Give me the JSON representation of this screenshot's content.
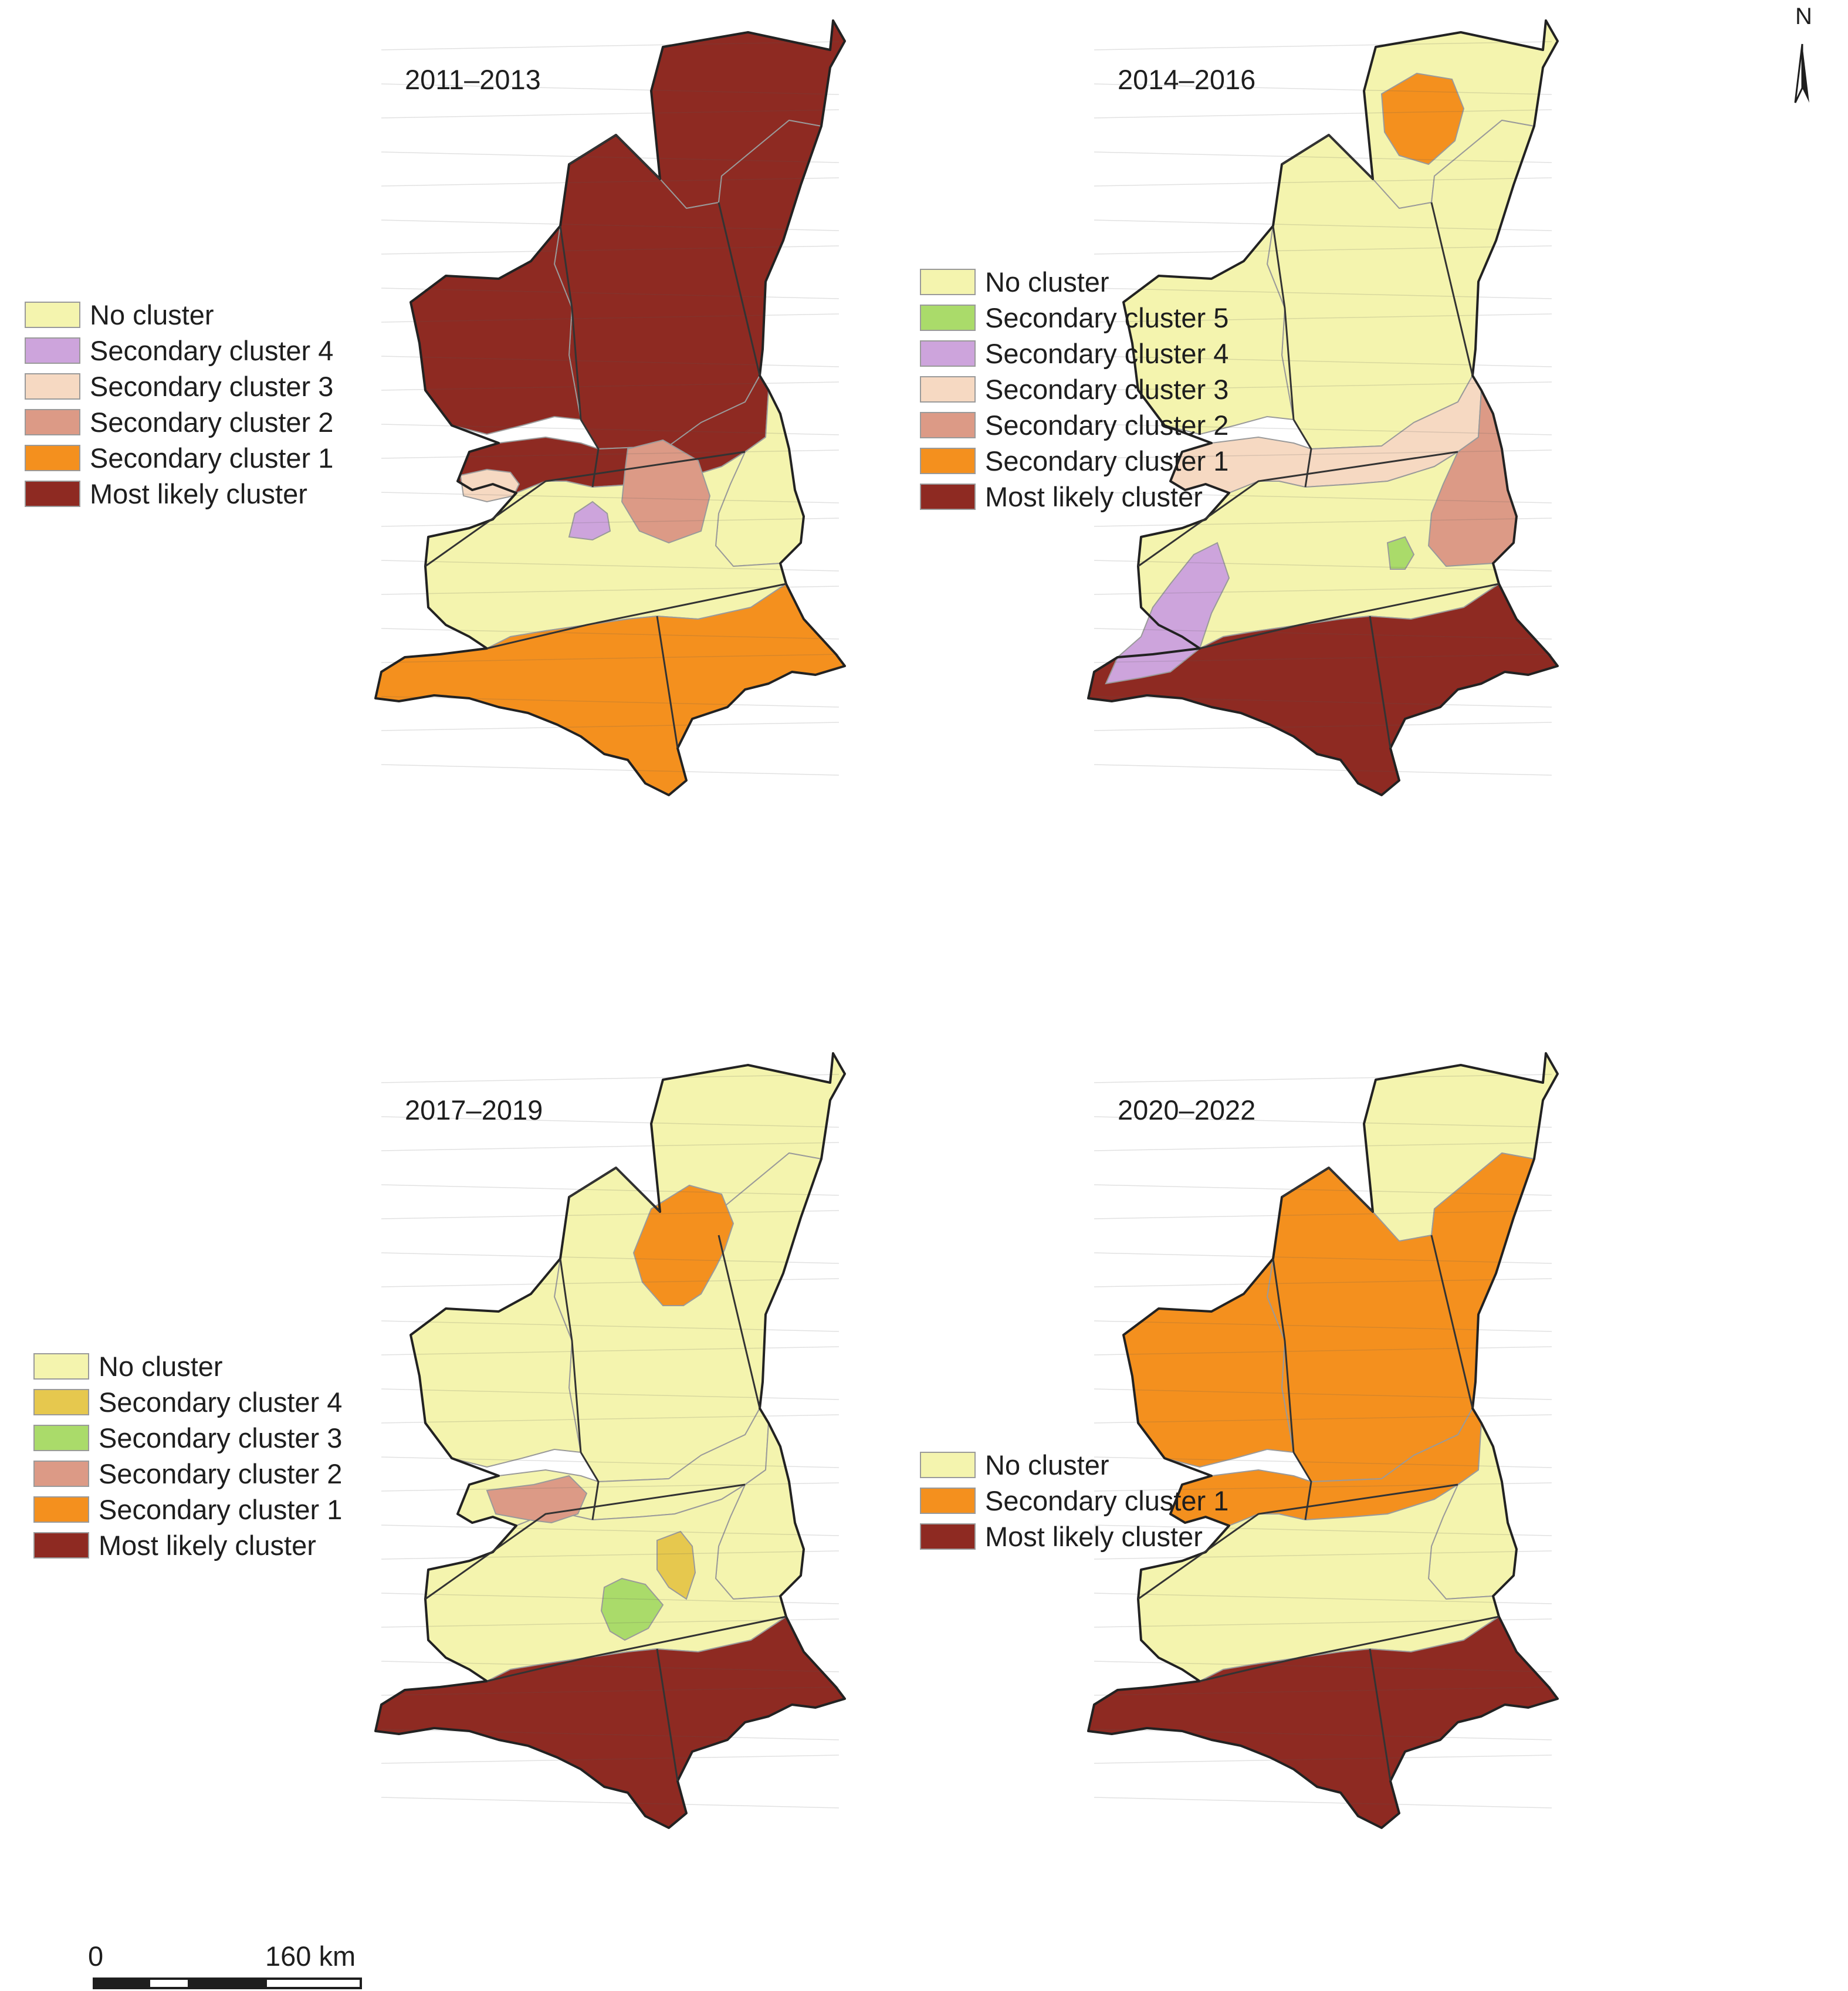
{
  "colors": {
    "no_cluster": "#f4f4ae",
    "most_likely_cluster": "#8e2a22",
    "secondary_cluster_1": "#f4901e",
    "secondary_cluster_2": "#dc9a86",
    "secondary_cluster_3": "#f6d9c2",
    "secondary_cluster_4_purple": "#cda4dc",
    "secondary_cluster_4_gold": "#e6c84e",
    "secondary_cluster_5": "#aadb6a",
    "boundary": "#222222"
  },
  "north_arrow": {
    "label": "N",
    "icon": "north-arrow-icon"
  },
  "scale_bar": {
    "start_label": "0",
    "end_label": "160 km"
  },
  "panels": [
    {
      "title": "2011–2013",
      "legend": [
        {
          "label": "No cluster",
          "color": "#f4f4ae"
        },
        {
          "label": "Secondary cluster 4",
          "color": "#cda4dc"
        },
        {
          "label": "Secondary cluster 3",
          "color": "#f6d9c2"
        },
        {
          "label": "Secondary cluster 2",
          "color": "#dc9a86"
        },
        {
          "label": "Secondary cluster 1",
          "color": "#f4901e"
        },
        {
          "label": "Most likely cluster",
          "color": "#8e2a22"
        }
      ],
      "regions": {
        "north": "most_likely",
        "upper": "most_likely",
        "strip": "most_likely",
        "guanzhong": "no_cluster",
        "south": "secondary_1",
        "northwest": "most_likely",
        "east": "no_cluster"
      },
      "patches": [
        {
          "cluster": "secondary_3",
          "color": "#f6d9c2"
        },
        {
          "cluster": "secondary_2",
          "color": "#dc9a86"
        },
        {
          "cluster": "secondary_4",
          "color": "#cda4dc"
        }
      ]
    },
    {
      "title": "2014–2016",
      "legend": [
        {
          "label": "No cluster",
          "color": "#f4f4ae"
        },
        {
          "label": "Secondary cluster 5",
          "color": "#aadb6a"
        },
        {
          "label": "Secondary cluster 4",
          "color": "#cda4dc"
        },
        {
          "label": "Secondary cluster 3",
          "color": "#f6d9c2"
        },
        {
          "label": "Secondary cluster 2",
          "color": "#dc9a86"
        },
        {
          "label": "Secondary cluster 1",
          "color": "#f4901e"
        },
        {
          "label": "Most likely cluster",
          "color": "#8e2a22"
        }
      ],
      "regions": {
        "north": "no_cluster",
        "upper": "no_cluster",
        "strip": "secondary_3",
        "guanzhong": "no_cluster",
        "south": "most_likely",
        "northwest": "no_cluster",
        "east": "secondary_2"
      },
      "patches": [
        {
          "cluster": "secondary_1",
          "color": "#f4901e"
        },
        {
          "cluster": "secondary_4",
          "color": "#cda4dc"
        },
        {
          "cluster": "secondary_5",
          "color": "#aadb6a"
        }
      ]
    },
    {
      "title": "2017–2019",
      "legend": [
        {
          "label": "No cluster",
          "color": "#f4f4ae"
        },
        {
          "label": "Secondary cluster 4",
          "color": "#e6c84e"
        },
        {
          "label": "Secondary cluster 3",
          "color": "#aadb6a"
        },
        {
          "label": "Secondary cluster 2",
          "color": "#dc9a86"
        },
        {
          "label": "Secondary cluster 1",
          "color": "#f4901e"
        },
        {
          "label": "Most likely cluster",
          "color": "#8e2a22"
        }
      ],
      "regions": {
        "north": "no_cluster",
        "upper": "no_cluster",
        "strip": "no_cluster",
        "guanzhong": "no_cluster",
        "south": "most_likely",
        "northwest": "no_cluster",
        "east": "no_cluster"
      },
      "patches": [
        {
          "cluster": "secondary_1",
          "color": "#f4901e"
        },
        {
          "cluster": "secondary_2",
          "color": "#dc9a86"
        },
        {
          "cluster": "secondary_4",
          "color": "#e6c84e"
        },
        {
          "cluster": "secondary_3",
          "color": "#aadb6a"
        }
      ]
    },
    {
      "title": "2020–2022",
      "legend": [
        {
          "label": "No cluster",
          "color": "#f4f4ae"
        },
        {
          "label": "Secondary cluster 1",
          "color": "#f4901e"
        },
        {
          "label": "Most likely cluster",
          "color": "#8e2a22"
        }
      ],
      "regions": {
        "north": "no_cluster",
        "upper": "secondary_1",
        "strip": "secondary_1",
        "guanzhong": "no_cluster",
        "south": "most_likely",
        "northwest": "secondary_1",
        "east": "no_cluster"
      },
      "patches": []
    }
  ]
}
